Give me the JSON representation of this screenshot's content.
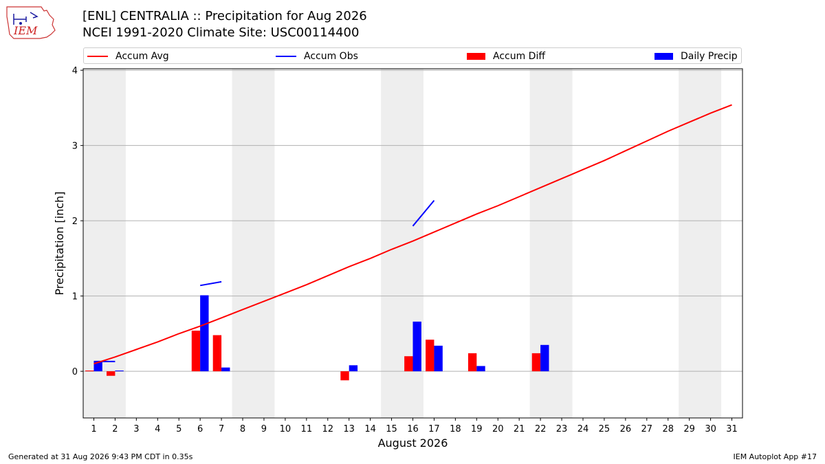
{
  "header": {
    "title_line1": "[ENL] CENTRALIA :: Precipitation for Aug 2026",
    "title_line2": "NCEI 1991-2020 Climate Site: USC00114400",
    "logo_text": "IEM"
  },
  "footer": {
    "left": "Generated at 31 Aug 2026 9:43 PM CDT in 0.35s",
    "right": "IEM Autoplot App #17"
  },
  "chart_data": {
    "type": "bar",
    "xlabel": "August 2026",
    "ylabel": "Precipitation [inch]",
    "xlim": [
      0.5,
      31.5
    ],
    "ylim": [
      -0.62,
      4.02
    ],
    "yticks": [
      0,
      1,
      2,
      3,
      4
    ],
    "grid": "horizontal",
    "legend_placement": "top",
    "weekend_shading": [
      [
        0.5,
        2.5
      ],
      [
        7.5,
        9.5
      ],
      [
        14.5,
        16.5
      ],
      [
        21.5,
        23.5
      ],
      [
        28.5,
        30.5
      ]
    ],
    "legend": [
      {
        "label": "Accum Avg",
        "kind": "line",
        "color": "#ff0000"
      },
      {
        "label": "Accum Obs",
        "kind": "line",
        "color": "#0000ff"
      },
      {
        "label": "Accum Diff",
        "kind": "bar",
        "color": "#ff0000"
      },
      {
        "label": "Daily Precip",
        "kind": "bar",
        "color": "#0000ff"
      }
    ],
    "days": [
      1,
      2,
      3,
      4,
      5,
      6,
      7,
      8,
      9,
      10,
      11,
      12,
      13,
      14,
      15,
      16,
      17,
      18,
      19,
      20,
      21,
      22,
      23,
      24,
      25,
      26,
      27,
      28,
      29,
      30,
      31
    ],
    "series": [
      {
        "name": "Accum Avg",
        "kind": "line",
        "color": "#ff0000",
        "values": [
          0.1,
          0.19,
          0.29,
          0.39,
          0.5,
          0.6,
          0.71,
          0.82,
          0.93,
          1.04,
          1.15,
          1.27,
          1.39,
          1.5,
          1.62,
          1.73,
          1.85,
          1.97,
          2.09,
          2.2,
          2.32,
          2.44,
          2.56,
          2.68,
          2.8,
          2.93,
          3.06,
          3.19,
          3.31,
          3.43,
          3.54
        ]
      },
      {
        "name": "Accum Obs",
        "kind": "line",
        "color": "#0000ff",
        "values": [
          0.13,
          0.13,
          null,
          null,
          null,
          1.14,
          1.19,
          null,
          null,
          null,
          null,
          null,
          null,
          null,
          null,
          1.93,
          2.27,
          null,
          null,
          null,
          null,
          null,
          null,
          null,
          null,
          null,
          null,
          null,
          null,
          null,
          null
        ]
      },
      {
        "name": "Accum Diff",
        "kind": "bar",
        "color": "#ff0000",
        "values": [
          0.01,
          -0.06,
          0,
          0,
          0,
          0.54,
          0.48,
          0,
          0,
          0,
          0,
          0,
          -0.12,
          0,
          0,
          0.2,
          0.42,
          0,
          0.24,
          0,
          0,
          0.24,
          0,
          0,
          0,
          0,
          0,
          0,
          0,
          0,
          0
        ]
      },
      {
        "name": "Daily Precip",
        "kind": "bar",
        "color": "#0000ff",
        "values": [
          0.13,
          0.01,
          0,
          0,
          0,
          1.01,
          0.05,
          0,
          0,
          0,
          0,
          0,
          0.08,
          0,
          0,
          0.66,
          0.34,
          0,
          0.07,
          0,
          0,
          0.35,
          0,
          0,
          0,
          0,
          0,
          0,
          0,
          0,
          0
        ]
      }
    ]
  }
}
